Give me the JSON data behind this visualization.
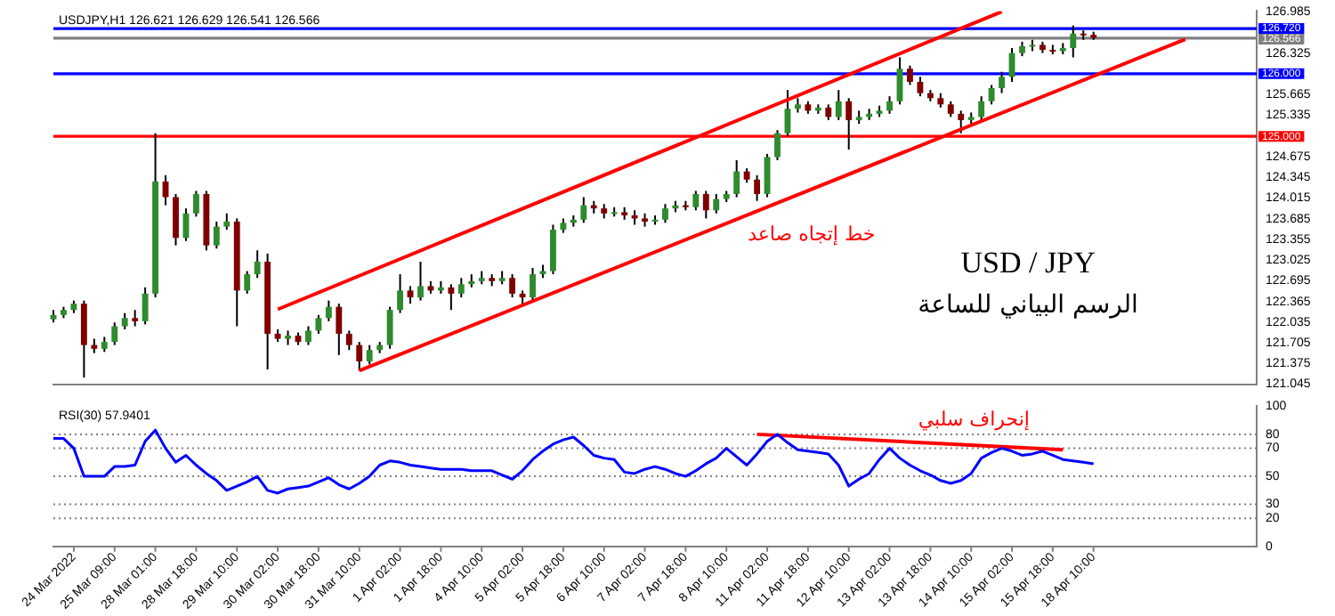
{
  "chart_data": [
    {
      "type": "candlestick",
      "title": "USD / JPY",
      "subtitle": "الرسم البياني للساعة",
      "annotations": [
        "USDJPY,H1 126.621 126.629 126.541 126.566",
        "خط إتجاه صاعد"
      ],
      "categories": [
        null,
        null,
        null,
        null,
        null,
        null,
        null,
        null,
        null,
        null,
        null,
        null,
        null,
        null,
        null,
        null,
        null,
        null,
        null,
        null,
        null,
        null,
        null,
        null,
        null,
        null,
        null,
        null,
        null,
        null,
        null,
        null,
        null,
        null,
        null,
        null,
        null,
        null,
        null,
        null,
        null,
        null,
        null,
        null,
        null,
        null,
        null,
        null,
        null,
        null,
        null,
        null,
        null,
        null,
        null,
        null,
        null,
        null,
        null,
        null,
        null,
        null,
        null,
        null,
        null,
        null,
        null,
        null,
        null,
        null,
        null,
        null,
        null,
        null,
        null,
        null,
        null,
        null,
        null,
        null,
        null,
        null,
        null,
        null,
        null,
        null,
        null,
        null,
        null,
        null,
        null,
        null,
        null,
        null,
        null,
        null,
        null,
        null,
        null,
        null,
        null,
        null,
        null,
        null,
        null,
        null,
        null,
        null,
        null,
        null,
        null,
        null,
        null,
        null,
        null,
        null,
        null,
        null,
        null
      ],
      "ohlc": [
        [
          122.08,
          122.23,
          122.03,
          122.15
        ],
        [
          122.15,
          122.28,
          122.1,
          122.23
        ],
        [
          122.23,
          122.38,
          122.18,
          122.33
        ],
        [
          122.33,
          122.38,
          121.15,
          121.67
        ],
        [
          121.67,
          121.77,
          121.54,
          121.61
        ],
        [
          121.61,
          121.8,
          121.56,
          121.72
        ],
        [
          121.72,
          122.03,
          121.67,
          121.97
        ],
        [
          121.97,
          122.18,
          121.92,
          122.1
        ],
        [
          122.1,
          122.23,
          121.97,
          122.05
        ],
        [
          122.05,
          122.59,
          122.0,
          122.49
        ],
        [
          122.49,
          125.05,
          122.43,
          124.28
        ],
        [
          124.28,
          124.38,
          123.9,
          124.03
        ],
        [
          124.03,
          124.08,
          123.26,
          123.38
        ],
        [
          123.38,
          123.85,
          123.33,
          123.77
        ],
        [
          123.77,
          124.13,
          123.72,
          124.08
        ],
        [
          124.08,
          124.13,
          123.18,
          123.26
        ],
        [
          123.26,
          123.64,
          123.21,
          123.56
        ],
        [
          123.56,
          123.77,
          123.51,
          123.64
        ],
        [
          123.64,
          123.69,
          121.97,
          122.54
        ],
        [
          122.54,
          122.85,
          122.49,
          122.8
        ],
        [
          122.8,
          123.18,
          122.74,
          123.0
        ],
        [
          123.0,
          123.13,
          121.28,
          121.85
        ],
        [
          121.85,
          121.92,
          121.72,
          121.77
        ],
        [
          121.77,
          121.9,
          121.67,
          121.82
        ],
        [
          121.82,
          121.87,
          121.67,
          121.72
        ],
        [
          121.72,
          121.97,
          121.67,
          121.9
        ],
        [
          121.9,
          122.15,
          121.85,
          122.1
        ],
        [
          122.1,
          122.38,
          122.05,
          122.28
        ],
        [
          122.28,
          122.33,
          121.51,
          121.85
        ],
        [
          121.85,
          121.9,
          121.59,
          121.67
        ],
        [
          121.67,
          121.72,
          121.26,
          121.41
        ],
        [
          121.41,
          121.67,
          121.36,
          121.59
        ],
        [
          121.59,
          121.72,
          121.54,
          121.67
        ],
        [
          121.67,
          122.28,
          121.61,
          122.23
        ],
        [
          122.23,
          122.8,
          122.18,
          122.54
        ],
        [
          122.54,
          122.61,
          122.33,
          122.43
        ],
        [
          122.43,
          123.0,
          122.38,
          122.61
        ],
        [
          122.61,
          122.69,
          122.49,
          122.54
        ],
        [
          122.54,
          122.69,
          122.49,
          122.59
        ],
        [
          122.59,
          122.64,
          122.23,
          122.49
        ],
        [
          122.49,
          122.74,
          122.43,
          122.64
        ],
        [
          122.64,
          122.8,
          122.59,
          122.69
        ],
        [
          122.69,
          122.85,
          122.64,
          122.74
        ],
        [
          122.74,
          122.8,
          122.61,
          122.69
        ],
        [
          122.69,
          122.85,
          122.64,
          122.74
        ],
        [
          122.74,
          122.8,
          122.43,
          122.49
        ],
        [
          122.49,
          122.54,
          122.33,
          122.43
        ],
        [
          122.43,
          122.9,
          122.38,
          122.8
        ],
        [
          122.8,
          122.95,
          122.74,
          122.85
        ],
        [
          122.85,
          123.59,
          122.8,
          123.51
        ],
        [
          123.51,
          123.69,
          123.46,
          123.62
        ],
        [
          123.62,
          123.74,
          123.56,
          123.67
        ],
        [
          123.67,
          124.03,
          123.62,
          123.9
        ],
        [
          123.9,
          123.97,
          123.77,
          123.85
        ],
        [
          123.85,
          123.92,
          123.69,
          123.77
        ],
        [
          123.77,
          123.87,
          123.72,
          123.79
        ],
        [
          123.79,
          123.87,
          123.67,
          123.74
        ],
        [
          123.74,
          123.82,
          123.59,
          123.69
        ],
        [
          123.69,
          123.77,
          123.56,
          123.64
        ],
        [
          123.64,
          123.74,
          123.59,
          123.67
        ],
        [
          123.67,
          123.92,
          123.62,
          123.85
        ],
        [
          123.85,
          123.97,
          123.79,
          123.9
        ],
        [
          123.9,
          123.97,
          123.82,
          123.87
        ],
        [
          123.87,
          124.13,
          123.82,
          124.08
        ],
        [
          124.08,
          124.13,
          123.69,
          123.82
        ],
        [
          123.82,
          124.08,
          123.77,
          124.0
        ],
        [
          124.0,
          124.13,
          123.95,
          124.08
        ],
        [
          124.08,
          124.62,
          124.03,
          124.44
        ],
        [
          124.44,
          124.49,
          124.26,
          124.31
        ],
        [
          124.31,
          124.38,
          123.97,
          124.08
        ],
        [
          124.08,
          124.72,
          124.03,
          124.67
        ],
        [
          124.67,
          125.1,
          124.62,
          125.05
        ],
        [
          125.05,
          125.74,
          125.0,
          125.44
        ],
        [
          125.44,
          125.61,
          125.38,
          125.51
        ],
        [
          125.51,
          125.56,
          125.36,
          125.41
        ],
        [
          125.41,
          125.51,
          125.36,
          125.46
        ],
        [
          125.46,
          125.51,
          125.26,
          125.31
        ],
        [
          125.31,
          125.74,
          125.26,
          125.56
        ],
        [
          125.56,
          125.61,
          124.79,
          125.26
        ],
        [
          125.26,
          125.41,
          125.2,
          125.31
        ],
        [
          125.31,
          125.44,
          125.26,
          125.36
        ],
        [
          125.36,
          125.49,
          125.31,
          125.41
        ],
        [
          125.41,
          125.64,
          125.36,
          125.56
        ],
        [
          125.56,
          126.26,
          125.51,
          126.08
        ],
        [
          126.08,
          126.13,
          125.82,
          125.87
        ],
        [
          125.87,
          125.95,
          125.64,
          125.69
        ],
        [
          125.69,
          125.74,
          125.56,
          125.61
        ],
        [
          125.61,
          125.69,
          125.46,
          125.51
        ],
        [
          125.51,
          125.56,
          125.31,
          125.36
        ],
        [
          125.36,
          125.41,
          125.05,
          125.26
        ],
        [
          125.26,
          125.38,
          125.2,
          125.31
        ],
        [
          125.31,
          125.64,
          125.26,
          125.56
        ],
        [
          125.56,
          125.82,
          125.51,
          125.77
        ],
        [
          125.77,
          126.03,
          125.69,
          125.95
        ],
        [
          125.95,
          126.41,
          125.87,
          126.33
        ],
        [
          126.33,
          126.51,
          126.28,
          126.44
        ],
        [
          126.44,
          126.54,
          126.36,
          126.46
        ],
        [
          126.46,
          126.51,
          126.33,
          126.38
        ],
        [
          126.38,
          126.46,
          126.31,
          126.36
        ],
        [
          126.36,
          126.49,
          126.31,
          126.41
        ],
        [
          126.41,
          126.77,
          126.26,
          126.64
        ],
        [
          126.64,
          126.69,
          126.54,
          126.62
        ],
        [
          126.62,
          126.67,
          126.54,
          126.57
        ],
        null,
        null,
        null,
        null,
        null,
        null,
        null,
        null,
        null,
        null,
        null,
        null,
        null,
        null,
        null,
        null
      ],
      "colors": [
        "#2e8b2e",
        "#2e8b2e",
        "#2e8b2e",
        "#800000",
        "#800000",
        "#2e8b2e",
        "#2e8b2e",
        "#2e8b2e",
        "#800000",
        "#2e8b2e",
        "#2e8b2e",
        "#800000",
        "#800000",
        "#2e8b2e",
        "#2e8b2e",
        "#800000",
        "#2e8b2e",
        "#2e8b2e",
        "#800000",
        "#2e8b2e",
        "#2e8b2e",
        "#800000",
        "#800000",
        "#2e8b2e",
        "#800000",
        "#2e8b2e",
        "#2e8b2e",
        "#2e8b2e",
        "#800000",
        "#800000",
        "#800000",
        "#2e8b2e",
        "#2e8b2e",
        "#2e8b2e",
        "#2e8b2e",
        "#800000",
        "#2e8b2e",
        "#800000",
        "#2e8b2e",
        "#800000",
        "#2e8b2e",
        "#2e8b2e",
        "#2e8b2e",
        "#800000",
        "#2e8b2e",
        "#800000",
        "#800000",
        "#2e8b2e",
        "#2e8b2e",
        "#2e8b2e",
        "#2e8b2e",
        "#2e8b2e",
        "#2e8b2e",
        "#800000",
        "#800000",
        "#2e8b2e",
        "#800000",
        "#800000",
        "#800000",
        "#2e8b2e",
        "#2e8b2e",
        "#2e8b2e",
        "#800000",
        "#2e8b2e",
        "#800000",
        "#2e8b2e",
        "#2e8b2e",
        "#2e8b2e",
        "#800000",
        "#800000",
        "#2e8b2e",
        "#2e8b2e",
        "#2e8b2e",
        "#2e8b2e",
        "#800000",
        "#2e8b2e",
        "#800000",
        "#2e8b2e",
        "#800000",
        "#2e8b2e",
        "#2e8b2e",
        "#2e8b2e",
        "#2e8b2e",
        "#2e8b2e",
        "#800000",
        "#800000",
        "#800000",
        "#800000",
        "#800000",
        "#800000",
        "#2e8b2e",
        "#2e8b2e",
        "#2e8b2e",
        "#2e8b2e",
        "#2e8b2e",
        "#2e8b2e",
        "#2e8b2e",
        "#800000",
        "#800000",
        "#2e8b2e",
        "#2e8b2e",
        "#800000",
        "#800000",
        null,
        null,
        null,
        null,
        null,
        null,
        null,
        null,
        null,
        null,
        null,
        null,
        null,
        null,
        null,
        null
      ],
      "series": [
        {
          "type": "line",
          "color": "#ff0000",
          "values": [
            null,
            null,
            null,
            null,
            null,
            null,
            null,
            null,
            null,
            null,
            null,
            null,
            null,
            null,
            null,
            null,
            null,
            null,
            null,
            null,
            null,
            null,
            122.24,
            null,
            null,
            null,
            null,
            null,
            null,
            null,
            null,
            null,
            null,
            null,
            null,
            null,
            null,
            null,
            null,
            null,
            null,
            null,
            null,
            null,
            null,
            null,
            null,
            null,
            null,
            null,
            null,
            null,
            null,
            null,
            null,
            null,
            null,
            null,
            null,
            null,
            null,
            null,
            null,
            null,
            null,
            null,
            null,
            null,
            null,
            null,
            null,
            null,
            null,
            null,
            null,
            null,
            null,
            null,
            null,
            null,
            null,
            null,
            null,
            null,
            null,
            null,
            null,
            null,
            null,
            null,
            null,
            null,
            null,
            126.99,
            null,
            null,
            null,
            null,
            null,
            null,
            null,
            null,
            null,
            null,
            null,
            null,
            null,
            null,
            null,
            null,
            null,
            null,
            null,
            null,
            null,
            null,
            null,
            null,
            null
          ]
        },
        {
          "type": "line",
          "color": "#ff0000",
          "values": [
            null,
            null,
            null,
            null,
            null,
            null,
            null,
            null,
            null,
            null,
            null,
            null,
            null,
            null,
            null,
            null,
            null,
            null,
            null,
            null,
            null,
            null,
            null,
            null,
            null,
            null,
            null,
            null,
            null,
            null,
            121.26,
            null,
            null,
            null,
            null,
            null,
            null,
            null,
            null,
            null,
            null,
            null,
            null,
            null,
            null,
            null,
            null,
            null,
            null,
            null,
            null,
            null,
            null,
            null,
            null,
            null,
            null,
            null,
            null,
            null,
            null,
            null,
            null,
            null,
            null,
            null,
            null,
            null,
            null,
            null,
            null,
            null,
            null,
            null,
            null,
            null,
            null,
            null,
            null,
            null,
            null,
            null,
            null,
            null,
            null,
            null,
            null,
            null,
            null,
            null,
            null,
            null,
            null,
            null,
            null,
            null,
            null,
            null,
            null,
            null,
            null,
            null,
            null,
            null,
            null,
            null,
            null,
            null,
            null,
            null,
            null,
            126.55,
            null,
            null,
            null,
            null,
            null,
            null,
            null
          ]
        }
      ],
      "ref_lines": [
        {
          "axis": "y",
          "value": 126.72,
          "label": "126.720",
          "color": "#0000ff"
        },
        {
          "axis": "y",
          "value": 126.566,
          "label": "126.566",
          "color": "#808080"
        },
        {
          "axis": "y",
          "value": 126.0,
          "label": "126.000",
          "color": "#0000ff"
        },
        {
          "axis": "y",
          "value": 125.0,
          "label": "125.000",
          "color": "#ff0000"
        }
      ],
      "ylim": [
        121.045,
        127.0
      ],
      "yticks": [
        126.985,
        126.325,
        125.665,
        125.335,
        124.675,
        124.345,
        124.015,
        123.685,
        123.355,
        123.025,
        122.695,
        122.365,
        122.035,
        121.705,
        121.375,
        121.045
      ],
      "tick_labels": "y",
      "grid": false,
      "legend": false
    },
    {
      "type": "line",
      "annotations": [
        "RSI(30) 57.9401",
        "إنحراف سلبي"
      ],
      "categories": [
        null,
        null,
        "24 Mar 2022",
        null,
        null,
        null,
        "25 Mar 09:00",
        null,
        null,
        null,
        "28 Mar 01:00",
        null,
        null,
        null,
        "28 Mar 18:00",
        null,
        null,
        null,
        "29 Mar 10:00",
        null,
        null,
        null,
        "30 Mar 02:00",
        null,
        null,
        null,
        "30 Mar 18:00",
        null,
        null,
        null,
        "31 Mar 10:00",
        null,
        null,
        null,
        "1 Apr 02:00",
        null,
        null,
        null,
        "1 Apr 18:00",
        null,
        null,
        null,
        "4 Apr 10:00",
        null,
        null,
        null,
        "5 Apr 02:00",
        null,
        null,
        null,
        "5 Apr 18:00",
        null,
        null,
        null,
        "6 Apr 10:00",
        null,
        null,
        null,
        "7 Apr 02:00",
        null,
        null,
        null,
        "7 Apr 18:00",
        null,
        null,
        null,
        "8 Apr 10:00",
        null,
        null,
        null,
        "11 Apr 02:00",
        null,
        null,
        null,
        "11 Apr 18:00",
        null,
        null,
        null,
        "12 Apr 10:00",
        null,
        null,
        null,
        "13 Apr 02:00",
        null,
        null,
        null,
        "13 Apr 18:00",
        null,
        null,
        null,
        "14 Apr 10:00",
        null,
        null,
        null,
        "15 Apr 02:00",
        null,
        null,
        null,
        "15 Apr 18:00",
        null,
        null,
        null,
        "18 Apr 10:00",
        null,
        null,
        null,
        null,
        null,
        null,
        null,
        null,
        null,
        null,
        null,
        null,
        null,
        null,
        null,
        null
      ],
      "series": [
        {
          "color": "#0000ff",
          "values": [
            77,
            77,
            70,
            50,
            50,
            50,
            57,
            57,
            58,
            75,
            83,
            70,
            60,
            65,
            58,
            52,
            47,
            40,
            43,
            46,
            50,
            40,
            38,
            41,
            42,
            43,
            46,
            49,
            44,
            41,
            45,
            50,
            58,
            61,
            60,
            58,
            57,
            56,
            55,
            55,
            55,
            54,
            54,
            54,
            51,
            48,
            54,
            62,
            68,
            73,
            76,
            78,
            72,
            65,
            63,
            62,
            53,
            52,
            55,
            57,
            55,
            52,
            50,
            54,
            59,
            63,
            70,
            64,
            58,
            66,
            75,
            80,
            74,
            69,
            68,
            67,
            66,
            58,
            43,
            48,
            52,
            62,
            70,
            63,
            58,
            54,
            51,
            47,
            45,
            47,
            52,
            63,
            67,
            70,
            68,
            65,
            66,
            68,
            65,
            62,
            61,
            60,
            59,
            null,
            null,
            null,
            null,
            null,
            null,
            null,
            null,
            null,
            null,
            null,
            null,
            null,
            null,
            null,
            null
          ]
        },
        {
          "type": "line",
          "color": "#ff0000",
          "values": [
            null,
            null,
            null,
            null,
            null,
            null,
            null,
            null,
            null,
            null,
            null,
            null,
            null,
            null,
            null,
            null,
            null,
            null,
            null,
            null,
            null,
            null,
            null,
            null,
            null,
            null,
            null,
            null,
            null,
            null,
            null,
            null,
            null,
            null,
            null,
            null,
            null,
            null,
            null,
            null,
            null,
            null,
            null,
            null,
            null,
            null,
            null,
            null,
            null,
            null,
            null,
            null,
            null,
            null,
            null,
            null,
            null,
            null,
            null,
            null,
            null,
            null,
            null,
            null,
            null,
            null,
            null,
            null,
            null,
            80,
            null,
            null,
            null,
            null,
            null,
            null,
            null,
            null,
            null,
            null,
            null,
            null,
            null,
            null,
            null,
            null,
            null,
            null,
            null,
            null,
            null,
            null,
            null,
            null,
            null,
            null,
            null,
            null,
            null,
            69,
            null,
            null,
            null,
            null,
            null,
            null,
            null,
            null,
            null,
            null,
            null,
            null,
            null,
            null,
            null,
            null,
            null,
            null,
            null
          ]
        }
      ],
      "ref_lines": [
        {
          "axis": "y",
          "value": 80,
          "color": "#808080",
          "line_style": "dotted"
        },
        {
          "axis": "y",
          "value": 70,
          "color": "#808080",
          "line_style": "dotted"
        },
        {
          "axis": "y",
          "value": 50,
          "color": "#808080",
          "line_style": "dotted"
        },
        {
          "axis": "y",
          "value": 30,
          "color": "#808080",
          "line_style": "dotted"
        },
        {
          "axis": "y",
          "value": 20,
          "color": "#808080",
          "line_style": "dotted"
        }
      ],
      "ylim": [
        0,
        100
      ],
      "yticks": [
        0,
        20,
        30,
        50,
        70,
        80,
        100
      ],
      "grid": false,
      "legend": false
    }
  ]
}
